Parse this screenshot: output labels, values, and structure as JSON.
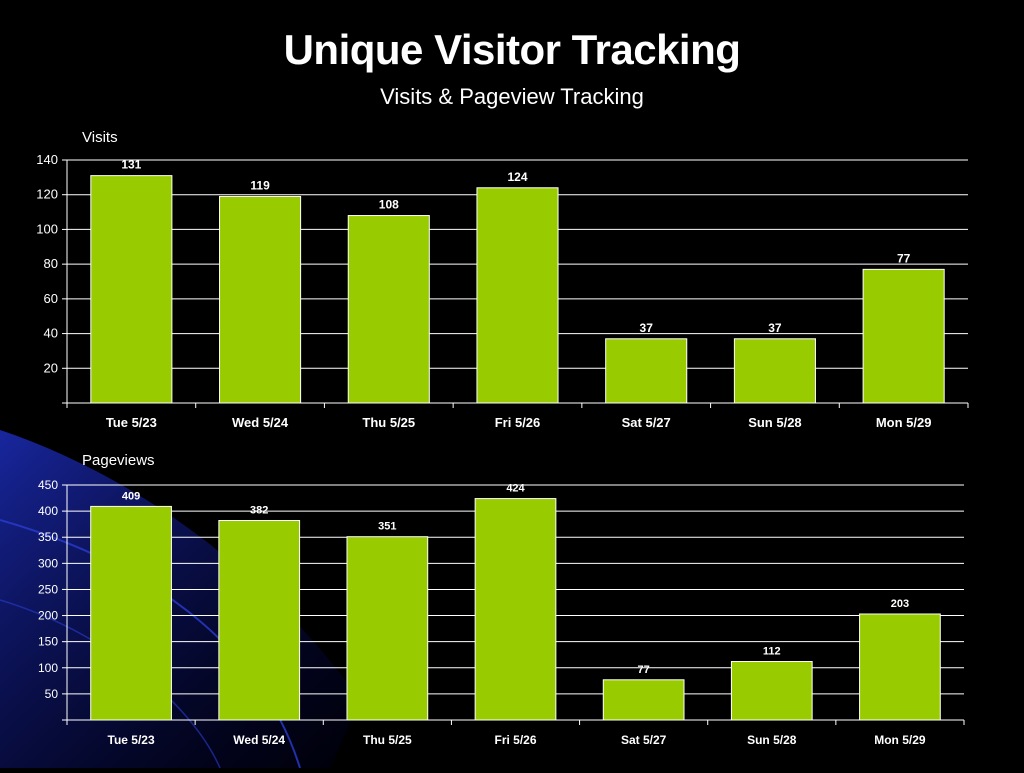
{
  "header": {
    "title": "Unique Visitor Tracking",
    "subtitle": "Visits & Pageview Tracking"
  },
  "colors": {
    "bar": "#99cc00",
    "bar_stroke": "#ffffff",
    "grid": "#ffffff",
    "background": "#000000",
    "accent_swoosh": "#1a2a9c"
  },
  "chart_data": [
    {
      "type": "bar",
      "label": "Visits",
      "categories": [
        "Tue 5/23",
        "Wed 5/24",
        "Thu 5/25",
        "Fri 5/26",
        "Sat 5/27",
        "Sun 5/28",
        "Mon 5/29"
      ],
      "values": [
        131,
        119,
        108,
        124,
        37,
        37,
        77
      ],
      "ylim": [
        0,
        140
      ],
      "yticks": [
        20,
        40,
        60,
        80,
        100,
        120,
        140
      ],
      "grid": true
    },
    {
      "type": "bar",
      "label": "Pageviews",
      "categories": [
        "Tue 5/23",
        "Wed 5/24",
        "Thu 5/25",
        "Fri 5/26",
        "Sat 5/27",
        "Sun 5/28",
        "Mon 5/29"
      ],
      "values": [
        409,
        382,
        351,
        424,
        77,
        112,
        203
      ],
      "ylim": [
        0,
        450
      ],
      "yticks": [
        50,
        100,
        150,
        200,
        250,
        300,
        350,
        400,
        450
      ],
      "grid": true
    }
  ]
}
